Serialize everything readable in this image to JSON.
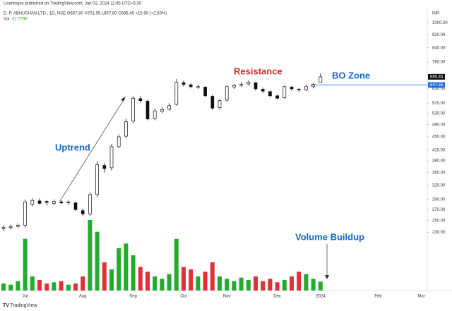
{
  "chart_data": {
    "type": "candlestick",
    "header": "Usermojos published on TradingView.com, Jan 02, 2024 11:45 UTC+5:30",
    "symbol_line": "D. P. ABHUSHAN LTD., 1D, NSE  O657.80  H701.95  L657.80  C685.45  +15.90 (+2.53%)",
    "volume_label": "Vol",
    "volume_value": "37.779K",
    "currency": "INR",
    "footer": "TradingView",
    "annotations": [
      {
        "text": "Uptrend",
        "color": "#1565c0"
      },
      {
        "text": "Resistance",
        "color": "#d32f2f"
      },
      {
        "text": "BO Zone",
        "color": "#1565c0"
      },
      {
        "text": "Volume Buildup",
        "color": "#1565c0"
      }
    ],
    "categories": [
      null,
      null,
      null,
      "Jul",
      null,
      null,
      null,
      null,
      null,
      null,
      null,
      "Aug",
      null,
      null,
      null,
      null,
      null,
      null,
      "Sep",
      null,
      null,
      null,
      null,
      null,
      null,
      "Oct",
      null,
      null,
      null,
      null,
      null,
      "Nov",
      null,
      null,
      null,
      null,
      null,
      null,
      "Dec",
      null,
      null,
      null,
      null,
      null,
      "2024",
      null,
      null,
      null,
      null,
      null,
      null,
      null,
      "Feb",
      null,
      null,
      null,
      null,
      null,
      "Mar"
    ],
    "open": [
      236,
      238,
      240,
      242,
      280,
      287,
      286,
      282,
      285,
      284,
      283,
      268,
      262,
      300,
      368,
      362,
      420,
      452,
      502,
      588,
      578,
      512,
      538,
      546,
      565,
      658,
      648,
      640,
      638,
      598,
      552,
      582,
      638,
      646,
      652,
      658,
      628,
      618,
      600,
      592,
      638,
      628,
      626,
      640,
      657.8,
      null,
      null,
      null,
      null,
      null,
      null,
      null,
      null,
      null,
      null,
      null,
      null,
      null,
      null
    ],
    "high": [
      242,
      243,
      245,
      290,
      292,
      292,
      288,
      290,
      289,
      288,
      286,
      272,
      305,
      380,
      375,
      428,
      458,
      510,
      600,
      600,
      585,
      548,
      555,
      570,
      675,
      668,
      655,
      650,
      640,
      605,
      585,
      645,
      652,
      662,
      668,
      660,
      635,
      622,
      605,
      645,
      642,
      635,
      648,
      656,
      701.95,
      null,
      null,
      null,
      null,
      null,
      null,
      null,
      null,
      null,
      null,
      null,
      null,
      null,
      null
    ],
    "low": [
      232,
      235,
      237,
      238,
      276,
      280,
      278,
      279,
      280,
      279,
      268,
      258,
      258,
      295,
      350,
      355,
      415,
      445,
      495,
      570,
      505,
      505,
      530,
      540,
      560,
      640,
      632,
      630,
      595,
      545,
      545,
      575,
      630,
      638,
      645,
      622,
      612,
      595,
      585,
      588,
      620,
      618,
      620,
      632,
      657.8,
      null,
      null,
      null,
      null,
      null,
      null,
      null,
      null,
      null,
      null,
      null,
      null,
      null,
      null
    ],
    "close": [
      238,
      240,
      242,
      285,
      288,
      282,
      284,
      286,
      283,
      285,
      270,
      262,
      300,
      370,
      360,
      420,
      450,
      500,
      590,
      580,
      510,
      540,
      545,
      560,
      660,
      650,
      640,
      640,
      600,
      550,
      580,
      640,
      645,
      650,
      660,
      630,
      620,
      600,
      590,
      640,
      630,
      625,
      640,
      650,
      685.45,
      null,
      null,
      null,
      null,
      null,
      null,
      null,
      null,
      null,
      null,
      null,
      null,
      null,
      null
    ],
    "volume": [
      30000,
      25000,
      40000,
      220000,
      60000,
      45000,
      30000,
      35000,
      40000,
      25000,
      30000,
      60000,
      300000,
      250000,
      120000,
      90000,
      180000,
      200000,
      150000,
      100000,
      80000,
      60000,
      50000,
      70000,
      220000,
      100000,
      90000,
      60000,
      80000,
      120000,
      60000,
      50000,
      40000,
      55000,
      45000,
      60000,
      40000,
      50000,
      35000,
      45000,
      60000,
      80000,
      70000,
      50000,
      37779,
      null,
      null,
      null,
      null,
      null,
      null,
      null,
      null,
      null,
      null,
      null,
      null,
      null,
      null
    ],
    "up_color": "#22ab2c",
    "down_color": "#e0303a",
    "candle_color": "#111111",
    "log_scale": true,
    "ylim": [
      153,
      1091
    ],
    "vlim": [
      0,
      300000
    ],
    "yticks": [
      {
        "value": 1000,
        "label": "1000.00"
      },
      {
        "value": 920,
        "label": "920.00"
      },
      {
        "value": 840,
        "label": "840.00"
      },
      {
        "value": 760,
        "label": "760.00"
      },
      {
        "value": 690,
        "label": "690.00"
      },
      {
        "value": 630,
        "label": "630.00"
      },
      {
        "value": 570,
        "label": "570.00"
      },
      {
        "value": 530,
        "label": "530.00"
      },
      {
        "value": 490,
        "label": "490.00"
      },
      {
        "value": 450,
        "label": "450.00"
      },
      {
        "value": 410,
        "label": "410.00"
      },
      {
        "value": 380,
        "label": "380.00"
      },
      {
        "value": 350,
        "label": "350.00"
      },
      {
        "value": 320,
        "label": "320.00"
      },
      {
        "value": 290,
        "label": "290.00"
      },
      {
        "value": 270,
        "label": "270.00"
      },
      {
        "value": 250,
        "label": "250.00"
      },
      {
        "value": 230,
        "label": "230.00"
      }
    ],
    "resistance_level": {
      "value": 647.55,
      "label": "647.55",
      "color": "#1e6fd9"
    },
    "last_price": {
      "value": 685.45,
      "label": "685.45"
    }
  }
}
